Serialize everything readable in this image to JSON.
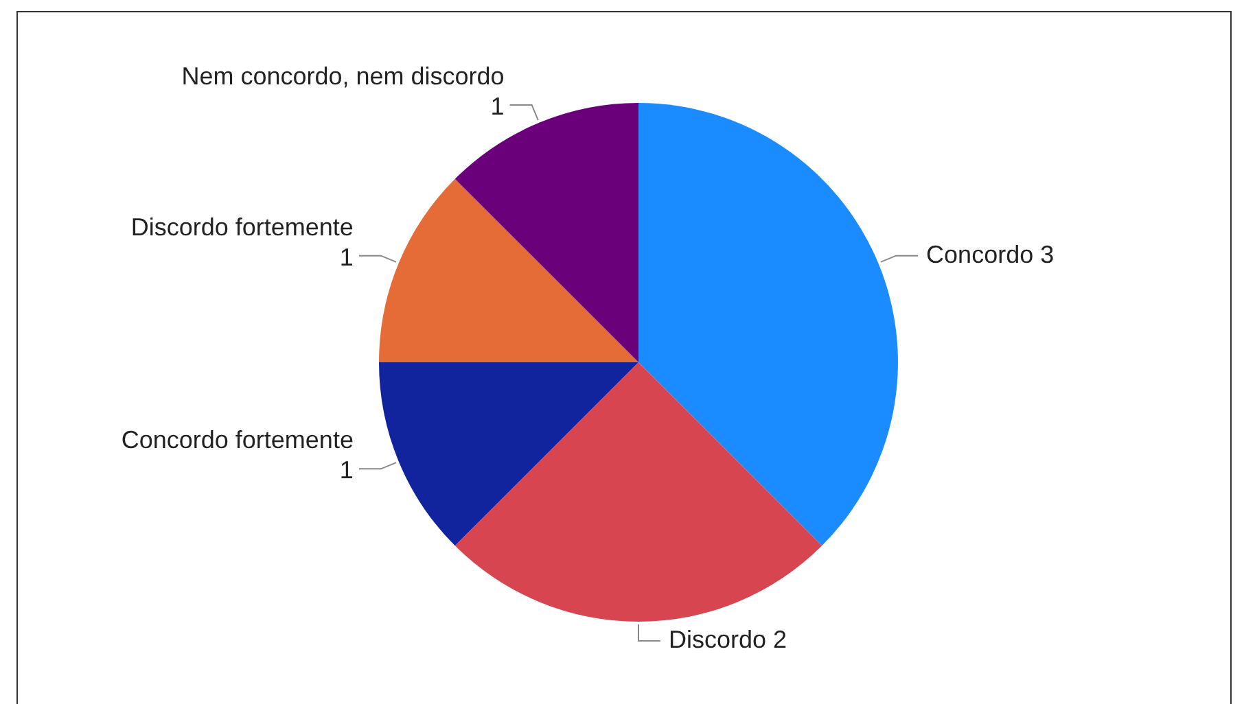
{
  "chart_data": {
    "type": "pie",
    "categories": [
      "Concordo",
      "Discordo",
      "Concordo fortemente",
      "Discordo fortemente",
      "Nem concordo, nem discordo"
    ],
    "values": [
      3,
      2,
      1,
      1,
      1
    ],
    "colors": [
      "#1a8cff",
      "#d64550",
      "#12239e",
      "#e66c37",
      "#6b007b"
    ],
    "data_labels": true,
    "legend": false
  }
}
